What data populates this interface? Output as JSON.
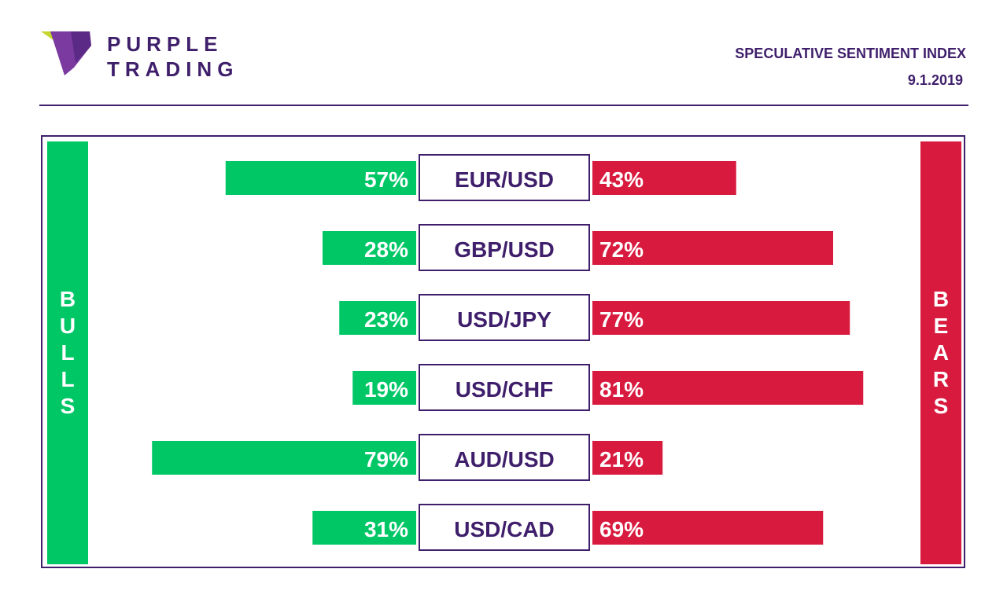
{
  "brand": {
    "line1": "PURPLE",
    "line2": "TRADING"
  },
  "header": {
    "title": "SPECULATIVE SENTIMENT INDEX",
    "date": "9.1.2019"
  },
  "sides": {
    "left": "BULLS",
    "right": "BEARS"
  },
  "colors": {
    "bull": "#00c766",
    "bear": "#d81a3f",
    "brand": "#3f1f6b"
  },
  "chart_data": {
    "type": "bar",
    "categories": [
      "EUR/USD",
      "GBP/USD",
      "USD/JPY",
      "USD/CHF",
      "AUD/USD",
      "USD/CAD"
    ],
    "series": [
      {
        "name": "BULLS",
        "values": [
          57,
          28,
          23,
          19,
          79,
          31
        ]
      },
      {
        "name": "BEARS",
        "values": [
          43,
          72,
          77,
          81,
          21,
          69
        ]
      }
    ],
    "unit": "%",
    "ylim": [
      0,
      100
    ]
  }
}
